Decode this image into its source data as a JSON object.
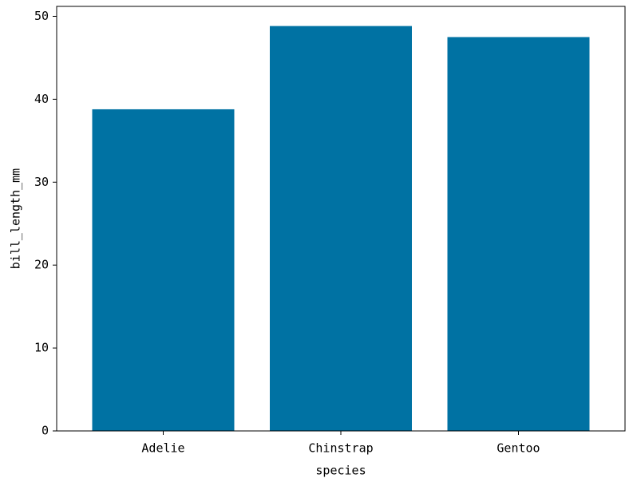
{
  "chart_data": {
    "type": "bar",
    "categories": [
      "Adelie",
      "Chinstrap",
      "Gentoo"
    ],
    "values": [
      38.79,
      48.83,
      47.5
    ],
    "color": "#0072a3",
    "xlabel": "species",
    "ylabel": "bill_length_mm",
    "ylim": [
      0,
      51.2
    ],
    "yticks": [
      0,
      10,
      20,
      30,
      40,
      50
    ],
    "grid": false
  }
}
